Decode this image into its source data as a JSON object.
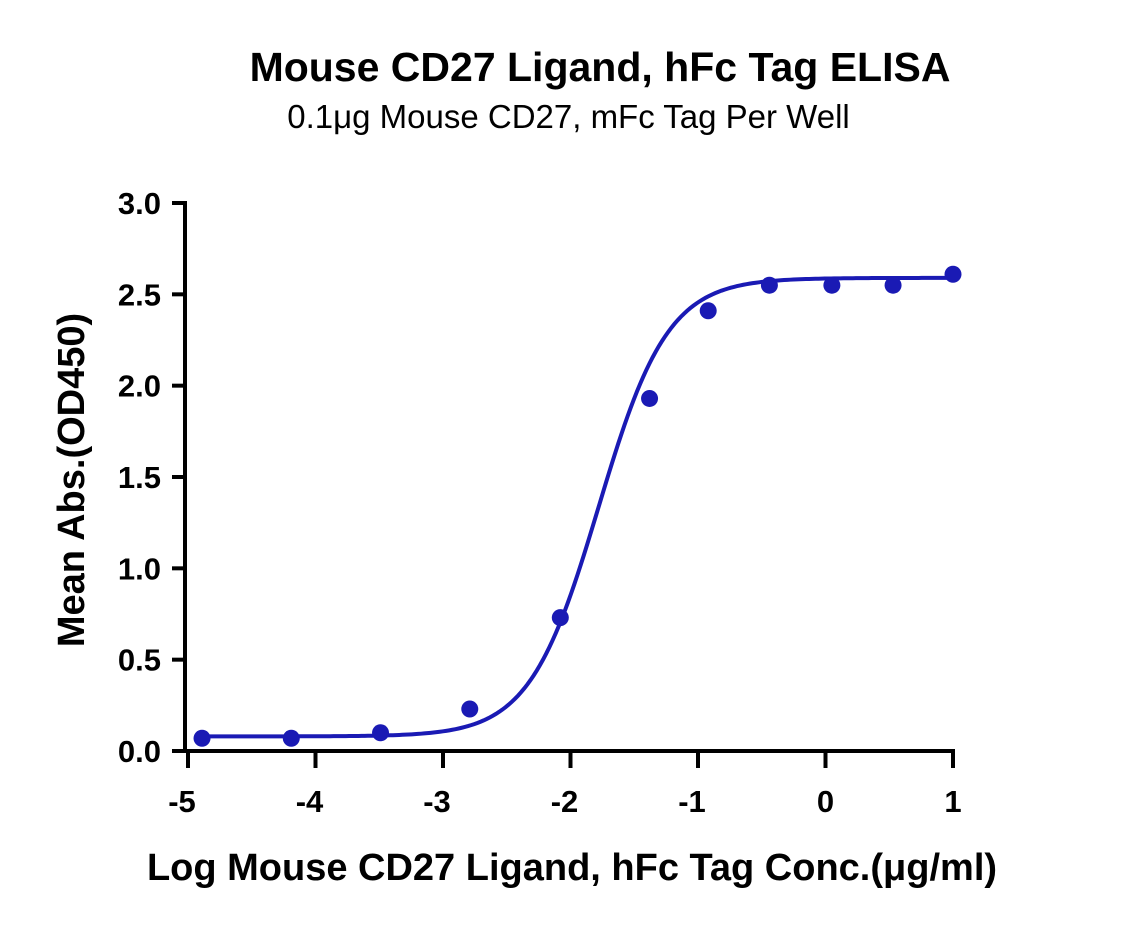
{
  "chart_data": {
    "type": "scatter",
    "title": "Mouse CD27 Ligand, hFc Tag ELISA",
    "subtitle": "0.1μg Mouse CD27, mFc Tag Per Well",
    "xlabel": "Log Mouse CD27 Ligand, hFc Tag Conc.(μg/ml)",
    "ylabel": "Mean Abs.(OD450)",
    "xlim": [
      -5,
      1
    ],
    "ylim": [
      0,
      3
    ],
    "x_ticks": [
      "-5",
      "-4",
      "-3",
      "-2",
      "-1",
      "0",
      "1"
    ],
    "y_ticks": [
      "0.0",
      "0.5",
      "1.0",
      "1.5",
      "2.0",
      "2.5",
      "3.0"
    ],
    "grid": false,
    "series": [
      {
        "points": [
          [
            -4.89,
            0.07
          ],
          [
            -4.19,
            0.07
          ],
          [
            -3.49,
            0.1
          ],
          [
            -2.79,
            0.23
          ],
          [
            -2.08,
            0.73
          ],
          [
            -1.38,
            1.93
          ],
          [
            -0.92,
            2.41
          ],
          [
            -0.44,
            2.55
          ],
          [
            0.05,
            2.55
          ],
          [
            0.53,
            2.55
          ],
          [
            1.0,
            2.61
          ]
        ],
        "fit": {
          "model": "4PL",
          "bottom": 0.08,
          "top": 2.59,
          "logEC50": -1.78,
          "hill": 1.6
        },
        "color": "#1a1ab4"
      }
    ]
  }
}
